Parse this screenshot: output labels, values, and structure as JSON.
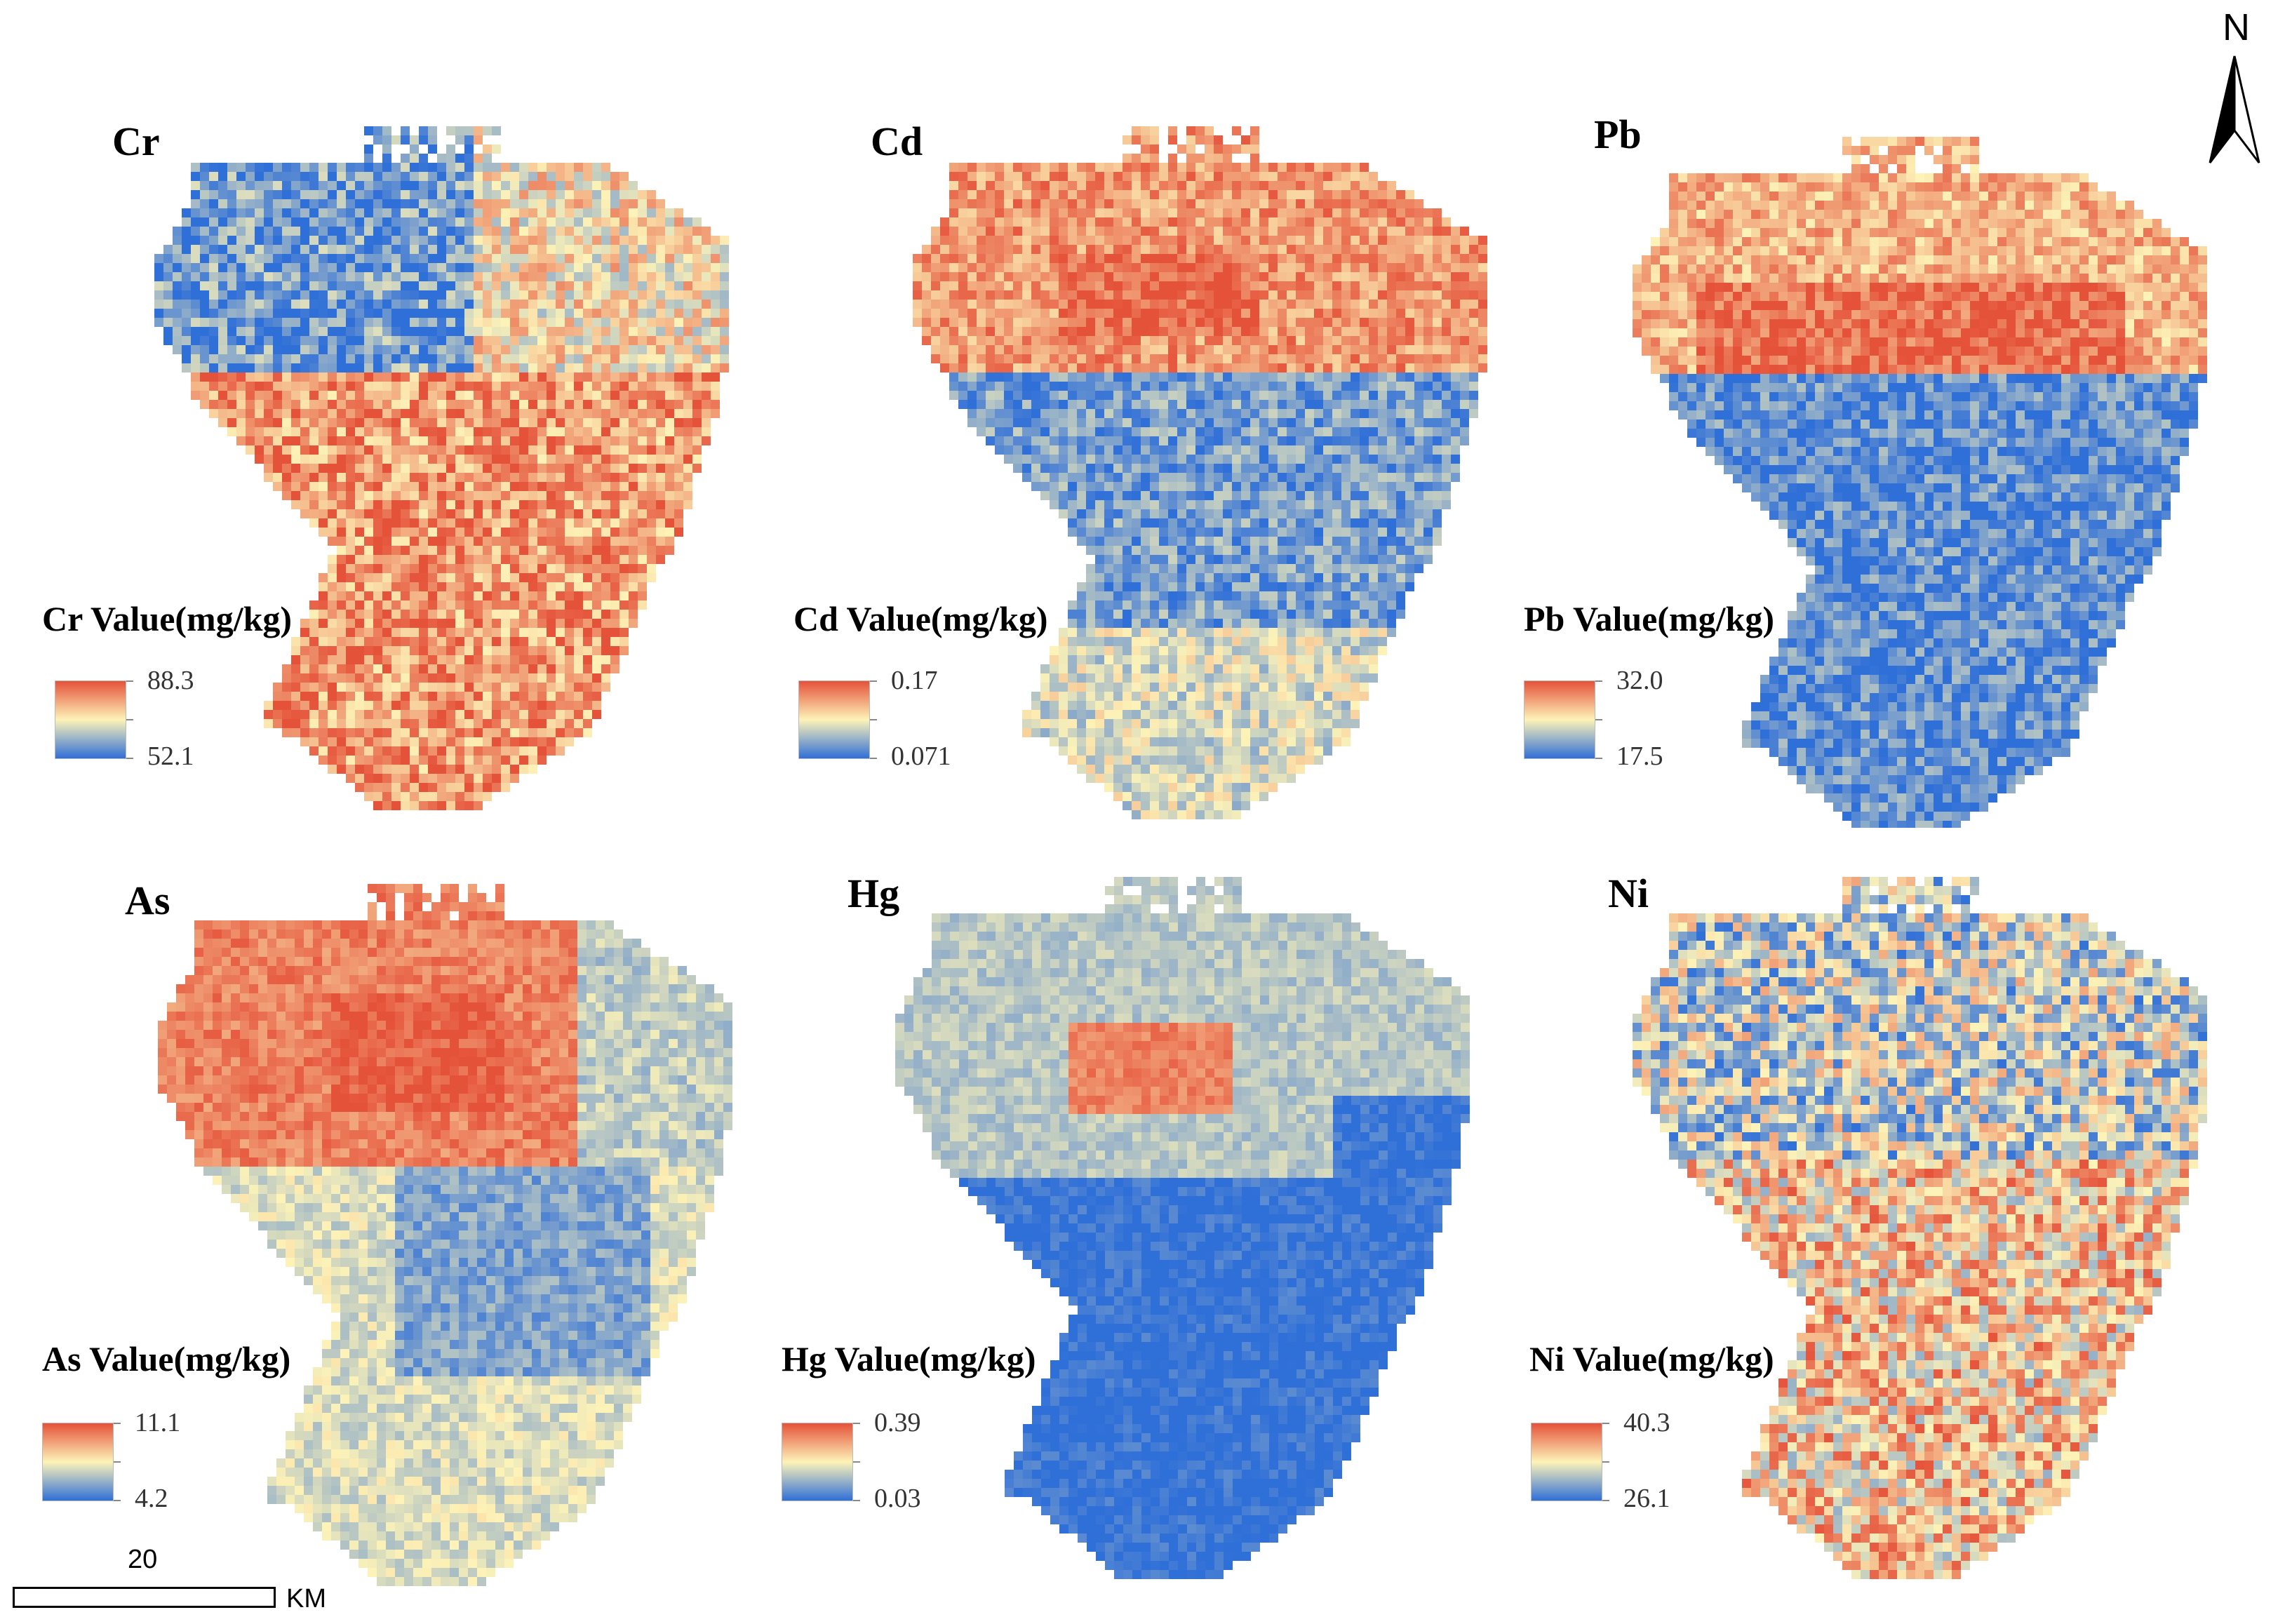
{
  "north_arrow": {
    "label": "N",
    "icon": "north-arrow-icon"
  },
  "scale_bar": {
    "value": "20",
    "unit": "KM"
  },
  "color_ramp": {
    "high": "#e5523a",
    "mid": "#fdf3b8",
    "low": "#2f6fd8"
  },
  "panels": [
    {
      "element": "Cr",
      "legend_title": "Cr Value(mg/kg)",
      "max": "88.3",
      "min": "52.1",
      "pattern": "cr"
    },
    {
      "element": "Cd",
      "legend_title": "Cd Value(mg/kg)",
      "max": "0.17",
      "min": "0.071",
      "pattern": "cd"
    },
    {
      "element": "Pb",
      "legend_title": "Pb Value(mg/kg)",
      "max": "32.0",
      "min": "17.5",
      "pattern": "pb"
    },
    {
      "element": "As",
      "legend_title": "As Value(mg/kg)",
      "max": "11.1",
      "min": "4.2",
      "pattern": "as"
    },
    {
      "element": "Hg",
      "legend_title": "Hg Value(mg/kg)",
      "max": "0.39",
      "min": "0.03",
      "pattern": "hg"
    },
    {
      "element": "Ni",
      "legend_title": "Ni Value(mg/kg)",
      "max": "40.3",
      "min": "26.1",
      "pattern": "ni"
    }
  ]
}
